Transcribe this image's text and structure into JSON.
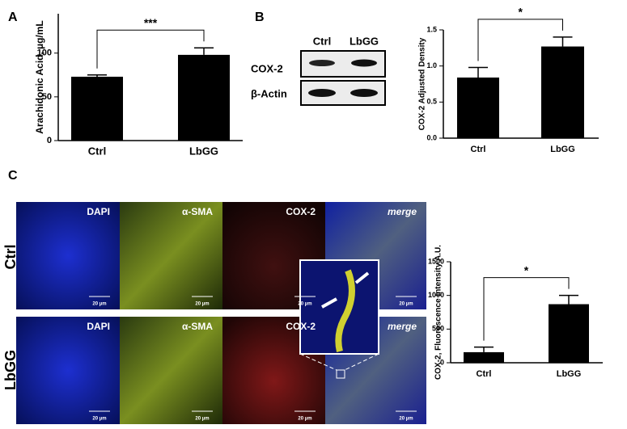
{
  "chart_data": [
    {
      "type": "bar",
      "panel": "A",
      "ylabel": "Arachidonic Acid, µg/mL",
      "categories": [
        "Ctrl",
        "LbGG"
      ],
      "values": [
        73,
        98
      ],
      "errors": [
        2,
        8
      ],
      "color": "#000000",
      "ylim": [
        0,
        145
      ],
      "yticks": [
        0,
        50,
        100
      ],
      "annotation": "***"
    },
    {
      "type": "bar",
      "ylabel": "COX-2 Adjusted Density",
      "categories": [
        "Ctrl",
        "LbGG"
      ],
      "values": [
        0.84,
        1.27
      ],
      "errors": [
        0.14,
        0.13
      ],
      "color": "#000000",
      "ylim": [
        0,
        1.5
      ],
      "yticks": [
        {
          "value": 0,
          "label": "0.0"
        },
        0.5,
        {
          "value": 1,
          "label": "1.0"
        },
        1.5
      ],
      "annotation": "*"
    },
    {
      "type": "bar",
      "ylabel": "COX-2, Fluorescence Intensity A.U.",
      "categories": [
        "Ctrl",
        "LbGG"
      ],
      "values": [
        157,
        870
      ],
      "errors": [
        75,
        130
      ],
      "color": "#000000",
      "ylim": [
        0,
        1500
      ],
      "yticks": [
        0,
        500,
        1000,
        1500
      ],
      "annotation": "*"
    }
  ],
  "blot": {
    "panel": "B",
    "lanes": [
      "Ctrl",
      "LbGG"
    ],
    "rows": [
      "COX-2",
      "β-Actin"
    ]
  },
  "microscopy": {
    "panel": "C",
    "rows": [
      "Ctrl",
      "LbGG"
    ],
    "channels": [
      "DAPI",
      "α-SMA",
      "COX-2",
      "merge"
    ],
    "scale_bar": "20 µm"
  }
}
